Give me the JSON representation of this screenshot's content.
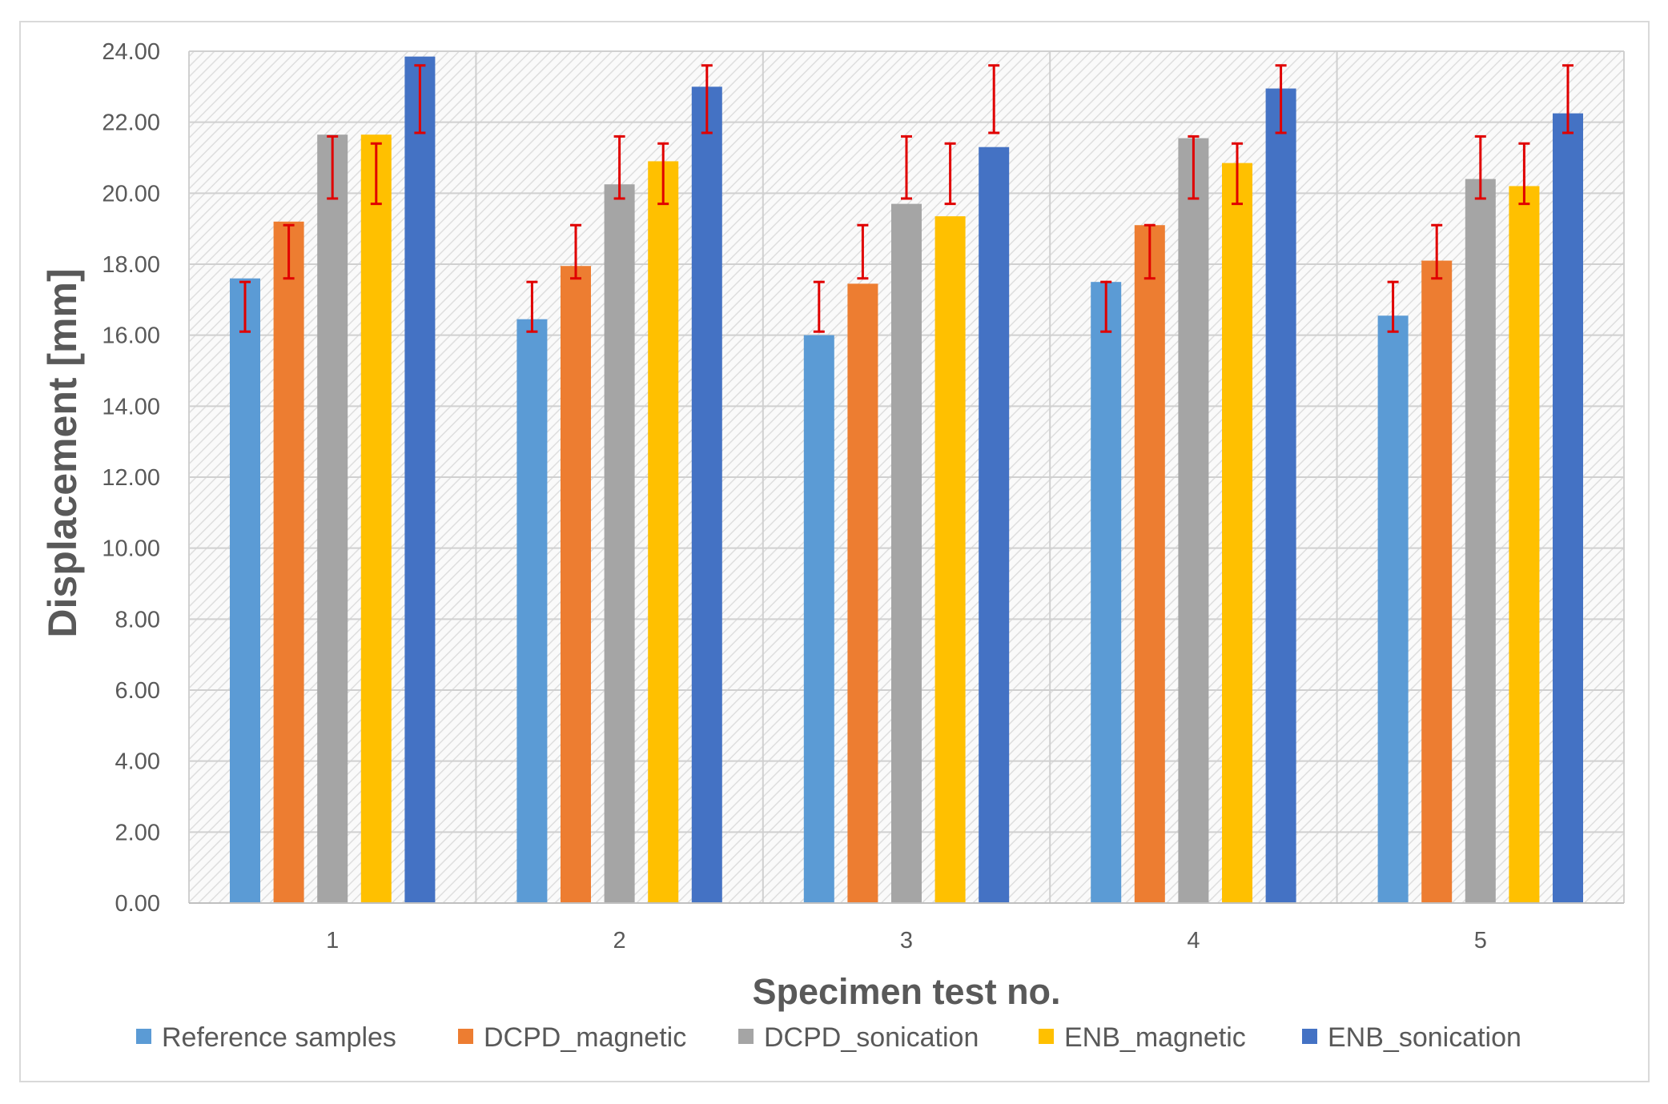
{
  "chart_data": {
    "type": "bar",
    "title": "",
    "xlabel": "Specimen test no.",
    "ylabel": "Displacement [mm]",
    "ylim": [
      0,
      24
    ],
    "ytick_step": 2,
    "ytick_labels": [
      "0.00",
      "2.00",
      "4.00",
      "6.00",
      "8.00",
      "10.00",
      "12.00",
      "14.00",
      "16.00",
      "18.00",
      "20.00",
      "22.00",
      "24.00"
    ],
    "categories": [
      "1",
      "2",
      "3",
      "4",
      "5"
    ],
    "grid": true,
    "background_pattern": "hatched",
    "legend_position": "bottom",
    "error_bar_color": "#e00000",
    "series": [
      {
        "name": "Reference samples",
        "color": "#5b9bd5",
        "values": [
          17.6,
          16.45,
          16.0,
          17.5,
          16.55
        ],
        "err_low": [
          16.1,
          16.1,
          16.1,
          16.1,
          16.1
        ],
        "err_high": [
          17.5,
          17.5,
          17.5,
          17.5,
          17.5
        ]
      },
      {
        "name": "DCPD_magnetic",
        "color": "#ed7d31",
        "values": [
          19.2,
          17.95,
          17.45,
          19.1,
          18.1
        ],
        "err_low": [
          17.6,
          17.6,
          17.6,
          17.6,
          17.6
        ],
        "err_high": [
          19.1,
          19.1,
          19.1,
          19.1,
          19.1
        ]
      },
      {
        "name": "DCPD_sonication",
        "color": "#a5a5a5",
        "values": [
          21.65,
          20.25,
          19.7,
          21.55,
          20.4
        ],
        "err_low": [
          19.85,
          19.85,
          19.85,
          19.85,
          19.85
        ],
        "err_high": [
          21.6,
          21.6,
          21.6,
          21.6,
          21.6
        ]
      },
      {
        "name": "ENB_magnetic",
        "color": "#ffc000",
        "values": [
          21.65,
          20.9,
          19.35,
          20.85,
          20.2
        ],
        "err_low": [
          19.7,
          19.7,
          19.7,
          19.7,
          19.7
        ],
        "err_high": [
          21.4,
          21.4,
          21.4,
          21.4,
          21.4
        ]
      },
      {
        "name": "ENB_sonication",
        "color": "#4472c4",
        "values": [
          23.85,
          23.0,
          21.3,
          22.95,
          22.25
        ],
        "err_low": [
          21.7,
          21.7,
          21.7,
          21.7,
          21.7
        ],
        "err_high": [
          23.6,
          23.6,
          23.6,
          23.6,
          23.6
        ]
      }
    ]
  }
}
